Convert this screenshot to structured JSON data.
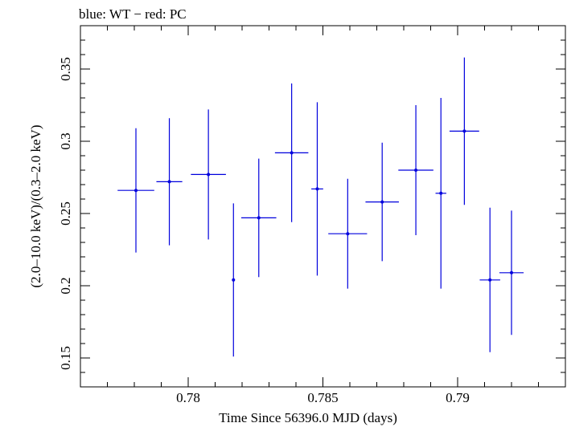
{
  "chart_data": {
    "type": "scatter",
    "title": "blue: WT − red: PC",
    "xlabel": "Time Since 56396.0 MJD (days)",
    "ylabel": "(2.0–10.0 keV)/(0.3–2.0 keV)",
    "xlim": [
      0.776,
      0.794
    ],
    "ylim": [
      0.13,
      0.38
    ],
    "x_ticks": [
      0.78,
      0.785,
      0.79
    ],
    "x_tick_labels": [
      "0.78",
      "0.785",
      "0.79"
    ],
    "y_ticks": [
      0.15,
      0.2,
      0.25,
      0.3,
      0.35
    ],
    "y_tick_labels": [
      "0.15",
      "0.2",
      "0.25",
      "0.3",
      "0.35"
    ],
    "grid": false,
    "legend": "none",
    "series": [
      {
        "color": "#0000dd",
        "points": [
          {
            "x": 0.77806,
            "x_err": 0.00068,
            "y": 0.266,
            "y_err_low": 0.043,
            "y_err_high": 0.043
          },
          {
            "x": 0.7793,
            "x_err": 0.00048,
            "y": 0.272,
            "y_err_low": 0.044,
            "y_err_high": 0.044
          },
          {
            "x": 0.78075,
            "x_err": 0.00065,
            "y": 0.277,
            "y_err_low": 0.045,
            "y_err_high": 0.045
          },
          {
            "x": 0.78168,
            "x_err": 5e-05,
            "y": 0.204,
            "y_err_low": 0.053,
            "y_err_high": 0.053
          },
          {
            "x": 0.78262,
            "x_err": 0.00065,
            "y": 0.247,
            "y_err_low": 0.041,
            "y_err_high": 0.041
          },
          {
            "x": 0.78384,
            "x_err": 0.00062,
            "y": 0.292,
            "y_err_low": 0.048,
            "y_err_high": 0.048
          },
          {
            "x": 0.78479,
            "x_err": 0.00022,
            "y": 0.267,
            "y_err_low": 0.06,
            "y_err_high": 0.06
          },
          {
            "x": 0.78592,
            "x_err": 0.00072,
            "y": 0.236,
            "y_err_low": 0.038,
            "y_err_high": 0.038
          },
          {
            "x": 0.7872,
            "x_err": 0.00062,
            "y": 0.258,
            "y_err_low": 0.041,
            "y_err_high": 0.041
          },
          {
            "x": 0.78845,
            "x_err": 0.00065,
            "y": 0.28,
            "y_err_low": 0.045,
            "y_err_high": 0.045
          },
          {
            "x": 0.78938,
            "x_err": 0.0002,
            "y": 0.264,
            "y_err_low": 0.066,
            "y_err_high": 0.066
          },
          {
            "x": 0.79025,
            "x_err": 0.00055,
            "y": 0.307,
            "y_err_low": 0.051,
            "y_err_high": 0.051
          },
          {
            "x": 0.7912,
            "x_err": 0.00038,
            "y": 0.204,
            "y_err_low": 0.05,
            "y_err_high": 0.05
          },
          {
            "x": 0.792,
            "x_err": 0.00045,
            "y": 0.209,
            "y_err_low": 0.043,
            "y_err_high": 0.043
          }
        ]
      }
    ]
  }
}
